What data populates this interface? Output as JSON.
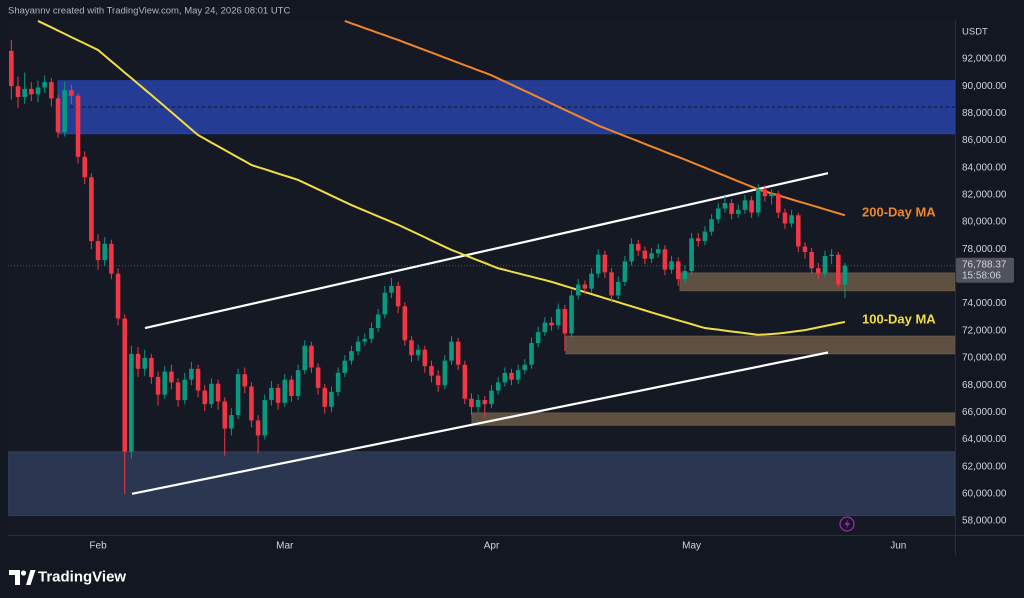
{
  "chart_data": {
    "type": "candlestick",
    "attribution": "Shayannv created with TradingView.com, May 24, 2026 08:01 UTC",
    "currency": "USDT",
    "brand": "TradingView",
    "countdown": "15:58:06",
    "last_price": {
      "value": 76788.37,
      "label": "76,788.37"
    },
    "up_color": "#089981",
    "down_color": "#f23645",
    "grid": false,
    "categories": [
      null,
      null,
      null,
      null,
      null,
      null,
      null,
      null,
      null,
      null,
      null,
      null,
      null,
      "Feb",
      null,
      null,
      null,
      null,
      null,
      null,
      null,
      null,
      null,
      null,
      null,
      null,
      null,
      null,
      null,
      null,
      null,
      null,
      null,
      null,
      null,
      null,
      null,
      null,
      null,
      null,
      null,
      "Mar",
      null,
      null,
      null,
      null,
      null,
      null,
      null,
      null,
      null,
      null,
      null,
      null,
      null,
      null,
      null,
      null,
      null,
      null,
      null,
      null,
      null,
      null,
      null,
      null,
      null,
      null,
      null,
      null,
      null,
      null,
      "Apr",
      null,
      null,
      null,
      null,
      null,
      null,
      null,
      null,
      null,
      null,
      null,
      null,
      null,
      null,
      null,
      null,
      null,
      null,
      null,
      null,
      null,
      null,
      null,
      null,
      null,
      null,
      null,
      null,
      null,
      "May",
      null,
      null,
      null,
      null,
      null,
      null,
      null,
      null,
      null,
      null,
      null,
      null,
      null,
      null,
      null,
      null,
      null,
      null,
      null,
      null,
      null,
      null,
      null,
      null,
      null,
      null,
      null,
      null,
      null,
      null,
      "Jun",
      null,
      null,
      null,
      null,
      null,
      null,
      null,
      null
    ],
    "open": [
      92600,
      90000,
      89200,
      89800,
      89400,
      89900,
      90300,
      89100,
      86600,
      89700,
      89300,
      84800,
      83300,
      78600,
      77200,
      78400,
      76200,
      72900,
      63100,
      70300,
      69200,
      70000,
      68600,
      67300,
      69000,
      68200,
      66900,
      68400,
      69200,
      67600,
      66600,
      68100,
      66800,
      64800,
      65800,
      68800,
      67900,
      65400,
      64300,
      66900,
      67800,
      66700,
      68400,
      67200,
      69100,
      70900,
      69300,
      67800,
      66400,
      67500,
      68900,
      69800,
      70500,
      71200,
      71400,
      72200,
      73200,
      74800,
      75300,
      73800,
      71300,
      70200,
      70600,
      69400,
      68700,
      68000,
      69800,
      71200,
      69500,
      67000,
      66400,
      66900,
      66600,
      67600,
      68200,
      68900,
      68400,
      69100,
      69500,
      71100,
      71900,
      72600,
      72400,
      73600,
      71800,
      74600,
      75400,
      75100,
      76200,
      77600,
      76300,
      74600,
      75600,
      77100,
      78400,
      77900,
      77300,
      77700,
      78000,
      76500,
      77100,
      75800,
      76400,
      78800,
      78600,
      79300,
      80200,
      81000,
      81400,
      80600,
      80900,
      81600,
      80700,
      82400,
      81900,
      82100,
      80700,
      79900,
      80500,
      78200,
      77800,
      76600,
      76200,
      77500,
      77600,
      75400,
      null,
      null,
      null,
      null,
      null,
      null,
      null,
      null,
      null,
      null,
      null,
      null,
      null,
      null,
      null,
      null
    ],
    "high": [
      93400,
      90700,
      91000,
      90300,
      90400,
      90800,
      90600,
      89400,
      90300,
      90100,
      89500,
      85200,
      83600,
      79100,
      78900,
      78700,
      76600,
      73200,
      70900,
      70800,
      70600,
      70300,
      69000,
      69400,
      69500,
      68500,
      68900,
      69700,
      69500,
      68000,
      68500,
      68400,
      67100,
      66300,
      69200,
      69300,
      68200,
      65800,
      67300,
      68300,
      68100,
      68800,
      68700,
      69500,
      71300,
      71200,
      69600,
      68100,
      67900,
      69300,
      70200,
      70900,
      71600,
      71800,
      72600,
      73600,
      75300,
      75900,
      75600,
      74100,
      71600,
      71000,
      70900,
      69800,
      69100,
      70200,
      71600,
      71500,
      69800,
      67400,
      67300,
      67200,
      68000,
      68600,
      69300,
      69200,
      69500,
      69900,
      71500,
      72300,
      73000,
      73000,
      74000,
      73900,
      75000,
      75800,
      75700,
      76600,
      78000,
      77900,
      76600,
      76000,
      77500,
      78800,
      78700,
      78200,
      78100,
      78400,
      78300,
      77500,
      77400,
      76800,
      79200,
      79200,
      79700,
      80600,
      81400,
      81900,
      81700,
      81300,
      82000,
      81900,
      82800,
      82700,
      82400,
      82300,
      81000,
      80900,
      80700,
      78500,
      78100,
      77000,
      77900,
      78000,
      77800,
      77000,
      null,
      null,
      null,
      null,
      null,
      null,
      null,
      null,
      null,
      null,
      null,
      null,
      null,
      null,
      null,
      null
    ],
    "low": [
      89000,
      88400,
      88700,
      88900,
      88800,
      89500,
      88500,
      86200,
      86300,
      88700,
      84300,
      82800,
      78000,
      76500,
      76800,
      75800,
      72400,
      60000,
      62600,
      68600,
      68700,
      68100,
      66500,
      67000,
      67700,
      66400,
      66600,
      68000,
      67100,
      66100,
      66300,
      66200,
      62800,
      64300,
      65500,
      67400,
      64900,
      63000,
      64000,
      66500,
      66200,
      66400,
      66800,
      66900,
      68800,
      68900,
      67300,
      65900,
      66000,
      67200,
      68600,
      69500,
      70200,
      70900,
      71100,
      71900,
      72900,
      74400,
      73300,
      70900,
      69700,
      69800,
      68900,
      68200,
      67500,
      67700,
      69500,
      69100,
      66600,
      65800,
      66000,
      65600,
      66300,
      67300,
      67900,
      68000,
      68100,
      68800,
      69200,
      70800,
      71600,
      72000,
      72100,
      70500,
      71500,
      74300,
      74700,
      74800,
      75900,
      75900,
      74100,
      74300,
      75300,
      76800,
      77500,
      76900,
      77000,
      77400,
      76100,
      76200,
      75300,
      75500,
      76100,
      78200,
      78300,
      79000,
      79900,
      80700,
      80200,
      80300,
      80600,
      80300,
      80400,
      81500,
      81300,
      80300,
      79500,
      79600,
      77800,
      77300,
      76200,
      75800,
      75900,
      76900,
      75200,
      74400,
      null,
      null,
      null,
      null,
      null,
      null,
      null,
      null,
      null,
      null,
      null,
      null,
      null,
      null,
      null,
      null
    ],
    "close": [
      90000,
      89200,
      89800,
      89400,
      89900,
      90300,
      89100,
      86600,
      89700,
      89300,
      84800,
      83300,
      78600,
      77200,
      78400,
      76200,
      72900,
      63100,
      70300,
      69200,
      70000,
      68600,
      67300,
      69000,
      68200,
      66900,
      68400,
      69200,
      67600,
      66600,
      68100,
      66800,
      64800,
      65800,
      68800,
      67900,
      65400,
      64300,
      66900,
      67800,
      66700,
      68400,
      67200,
      69100,
      70900,
      69300,
      67800,
      66400,
      67500,
      68900,
      69800,
      70500,
      71200,
      71400,
      72200,
      73200,
      74800,
      75300,
      73800,
      71300,
      70200,
      70600,
      69400,
      68700,
      68000,
      69800,
      71200,
      69500,
      67000,
      66400,
      66900,
      66600,
      67600,
      68200,
      68900,
      68400,
      69100,
      69500,
      71100,
      71900,
      72600,
      72400,
      73600,
      71800,
      74600,
      75400,
      75100,
      76200,
      77600,
      76300,
      74600,
      75600,
      77100,
      78400,
      77900,
      77300,
      77700,
      78000,
      76500,
      77100,
      75800,
      76400,
      78800,
      78600,
      79300,
      80200,
      81000,
      81400,
      80600,
      80900,
      81600,
      80700,
      82400,
      81900,
      82100,
      80700,
      79900,
      80500,
      78200,
      77800,
      76600,
      76200,
      77500,
      77600,
      75400,
      76788.37,
      null,
      null,
      null,
      null,
      null,
      null,
      null,
      null,
      null,
      null,
      null,
      null,
      null,
      null,
      null,
      null
    ],
    "lines": [
      {
        "name": "200-Day MA",
        "color": "#f0862a",
        "values": [
          null,
          null,
          null,
          null,
          null,
          null,
          null,
          null,
          null,
          null,
          null,
          null,
          null,
          null,
          null,
          null,
          null,
          null,
          null,
          null,
          null,
          null,
          null,
          null,
          null,
          null,
          null,
          null,
          null,
          null,
          null,
          null,
          null,
          null,
          null,
          null,
          null,
          null,
          null,
          null,
          null,
          null,
          null,
          null,
          null,
          null,
          null,
          null,
          null,
          null,
          94800,
          94620,
          94450,
          94270,
          94100,
          93920,
          93750,
          93570,
          93400,
          93210,
          93030,
          92840,
          92660,
          92470,
          92290,
          92100,
          91910,
          91730,
          91540,
          91360,
          91170,
          90990,
          90800,
          90570,
          90340,
          90110,
          89880,
          89650,
          89420,
          89190,
          88960,
          88720,
          88490,
          88260,
          88030,
          87800,
          87570,
          87340,
          87100,
          86910,
          86720,
          86520,
          86330,
          86140,
          85950,
          85750,
          85560,
          85370,
          85170,
          84980,
          84790,
          84600,
          84400,
          84200,
          84000,
          83800,
          83600,
          83400,
          83200,
          83000,
          82800,
          82600,
          82400,
          82250,
          82110,
          81960,
          81820,
          81670,
          81520,
          81380,
          81230,
          81090,
          80940,
          80790,
          80650,
          80500,
          null,
          null,
          null,
          null,
          null,
          null,
          null,
          null,
          null,
          null,
          null,
          null,
          null,
          null,
          null,
          null
        ]
      },
      {
        "name": "100-Day MA",
        "color": "#f2dd43",
        "values": [
          null,
          null,
          null,
          null,
          94800,
          94560,
          94330,
          94090,
          93850,
          93610,
          93370,
          93140,
          92900,
          92660,
          92250,
          91830,
          91420,
          91000,
          90590,
          90180,
          89760,
          89350,
          88930,
          88510,
          88090,
          87670,
          87240,
          86820,
          86400,
          86130,
          85850,
          85580,
          85300,
          85030,
          84750,
          84480,
          84200,
          84040,
          83890,
          83730,
          83570,
          83410,
          83260,
          83100,
          82870,
          82640,
          82410,
          82180,
          81940,
          81710,
          81480,
          81250,
          81040,
          80840,
          80630,
          80420,
          80220,
          80010,
          79800,
          79570,
          79340,
          79110,
          78880,
          78640,
          78410,
          78180,
          77950,
          77760,
          77560,
          77370,
          77180,
          76990,
          76790,
          76600,
          76480,
          76350,
          76230,
          76100,
          75980,
          75850,
          75730,
          75600,
          75450,
          75300,
          75150,
          75000,
          74850,
          74700,
          74550,
          74400,
          74250,
          74100,
          73950,
          73800,
          73650,
          73500,
          73350,
          73200,
          73060,
          72910,
          72770,
          72630,
          72490,
          72340,
          72200,
          72140,
          72080,
          72010,
          71950,
          71890,
          71830,
          71760,
          71700,
          71730,
          71760,
          71800,
          71850,
          71920,
          71980,
          72050,
          72150,
          72250,
          72350,
          72450,
          72550,
          72650,
          null,
          null,
          null,
          null,
          null,
          null,
          null,
          null,
          null,
          null,
          null,
          null,
          null,
          null,
          null,
          null
        ]
      }
    ],
    "zones": [
      {
        "range": [
          86500,
          90400
        ],
        "color": "#2743a8",
        "level": 88470
      },
      {
        "range": [
          58400,
          63100
        ],
        "color": "#2f3d58"
      },
      {
        "range": [
          74950,
          76250
        ],
        "color": "#6b5a46"
      },
      {
        "range": [
          70300,
          71600
        ],
        "color": "#6b5a46"
      },
      {
        "range": [
          65050,
          65950
        ],
        "color": "#6b5a46"
      }
    ],
    "channel": {
      "color": "#ffffff",
      "upper": [
        72200,
        83600
      ],
      "lower": [
        60000,
        70400
      ]
    },
    "ylim": [
      56970,
      94870
    ],
    "yticks": [
      {
        "value": 58000,
        "label": "58,000.00"
      },
      {
        "value": 60000,
        "label": "60,000.00"
      },
      {
        "value": 62000,
        "label": "62,000.00"
      },
      {
        "value": 64000,
        "label": "64,000.00"
      },
      {
        "value": 66000,
        "label": "66,000.00"
      },
      {
        "value": 68000,
        "label": "68,000.00"
      },
      {
        "value": 70000,
        "label": "70,000.00"
      },
      {
        "value": 72000,
        "label": "72,000.00"
      },
      {
        "value": 74000,
        "label": "74,000.00"
      },
      {
        "value": 76000,
        "label": "76,000.00"
      },
      {
        "value": 78000,
        "label": "78,000.00"
      },
      {
        "value": 80000,
        "label": "80,000.00"
      },
      {
        "value": 82000,
        "label": "82,000.00"
      },
      {
        "value": 84000,
        "label": "84,000.00"
      },
      {
        "value": 86000,
        "label": "86,000.00"
      },
      {
        "value": 88000,
        "label": "88,000.00"
      },
      {
        "value": 90000,
        "label": "90,000.00"
      },
      {
        "value": 92000,
        "label": "92,000.00"
      }
    ]
  }
}
